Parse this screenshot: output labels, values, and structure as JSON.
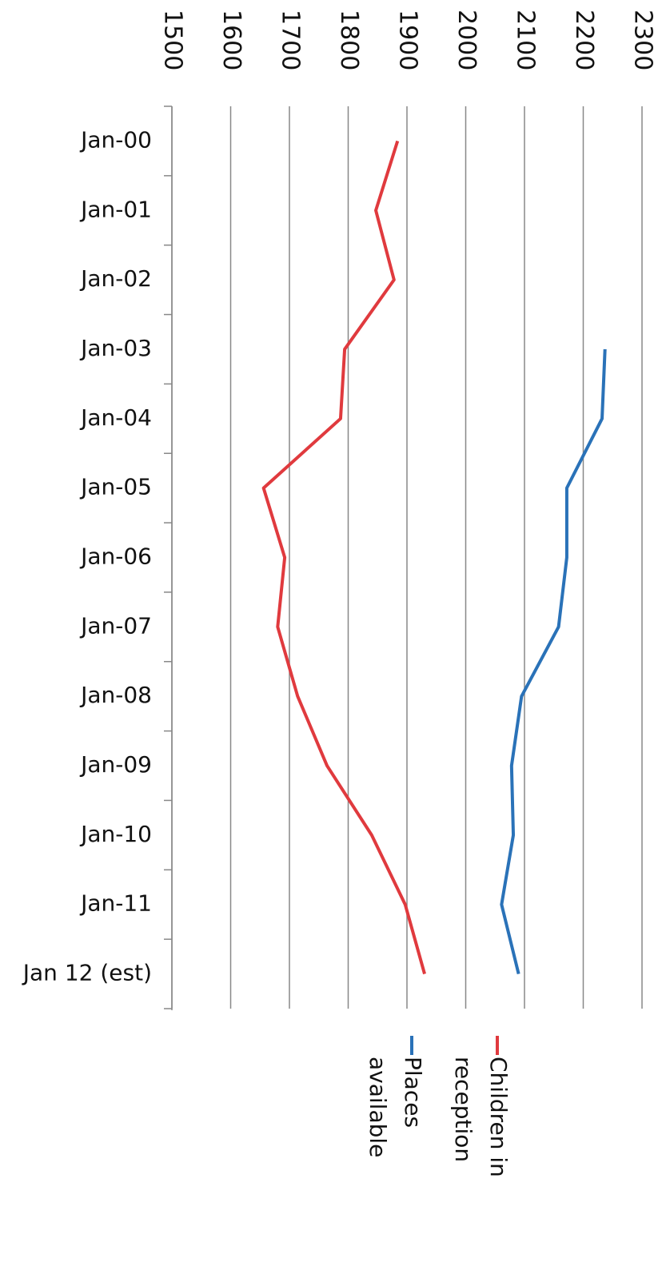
{
  "chart_data": {
    "type": "line",
    "orientation": "horizontal",
    "categories": [
      "Jan-00",
      "Jan-01",
      "Jan-02",
      "Jan-03",
      "Jan-04",
      "Jan-05",
      "Jan-06",
      "Jan-07",
      "Jan-08",
      "Jan-09",
      "Jan-10",
      "Jan-11",
      "Jan 12 (est)"
    ],
    "series": [
      {
        "name": "Children in reception",
        "color": "#e03a3e",
        "values": [
          1884,
          1847,
          1878,
          1794,
          1787,
          1656,
          1692,
          1680,
          1714,
          1764,
          1840,
          1897,
          1930
        ]
      },
      {
        "name": "Places available",
        "color": "#2a72b8",
        "values": [
          null,
          null,
          null,
          2237,
          2232,
          2172,
          2172,
          2158,
          2095,
          2078,
          2081,
          2061,
          2090
        ]
      }
    ],
    "ylim": [
      1500,
      2300
    ],
    "yticks": [
      1500,
      1600,
      1700,
      1800,
      1900,
      2000,
      2100,
      2200,
      2300
    ],
    "grid": true
  }
}
